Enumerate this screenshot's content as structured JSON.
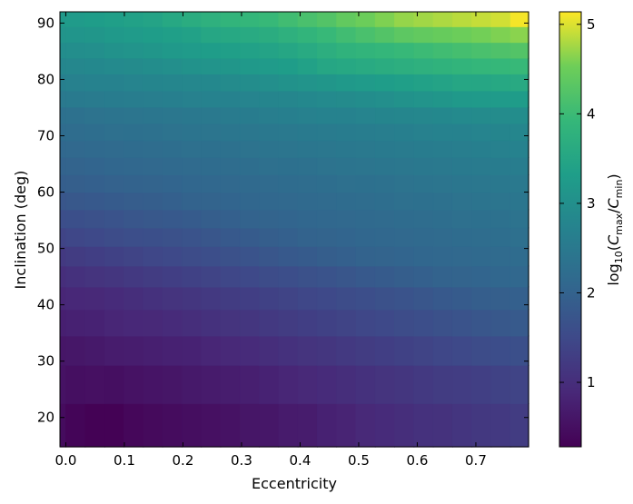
{
  "chart_data": {
    "type": "heatmap",
    "xlabel": "Eccentricity",
    "ylabel": "Inclination (deg)",
    "colorbar_label": {
      "prefix": "log",
      "sub10": "10",
      "open": "(",
      "c1": "C",
      "sub1": "max",
      "slash": "/",
      "c2": "C",
      "sub2": "min",
      "close": ")"
    },
    "colormap": "viridis",
    "xlim": [
      -0.01,
      0.79
    ],
    "ylim": [
      14.8,
      92
    ],
    "clim": [
      0.28,
      5.14
    ],
    "x_ticks": [
      {
        "value": 0.0,
        "label": "0.0"
      },
      {
        "value": 0.1,
        "label": "0.1"
      },
      {
        "value": 0.2,
        "label": "0.2"
      },
      {
        "value": 0.3,
        "label": "0.3"
      },
      {
        "value": 0.4,
        "label": "0.4"
      },
      {
        "value": 0.5,
        "label": "0.5"
      },
      {
        "value": 0.6,
        "label": "0.6"
      },
      {
        "value": 0.7,
        "label": "0.7"
      }
    ],
    "y_ticks": [
      {
        "value": 20,
        "label": "20"
      },
      {
        "value": 30,
        "label": "30"
      },
      {
        "value": 40,
        "label": "40"
      },
      {
        "value": 50,
        "label": "50"
      },
      {
        "value": 60,
        "label": "60"
      },
      {
        "value": 70,
        "label": "70"
      },
      {
        "value": 80,
        "label": "80"
      },
      {
        "value": 90,
        "label": "90"
      }
    ],
    "colorbar_ticks": [
      {
        "value": 1,
        "label": "1"
      },
      {
        "value": 2,
        "label": "2"
      },
      {
        "value": 3,
        "label": "3"
      },
      {
        "value": 4,
        "label": "4"
      },
      {
        "value": 5,
        "label": "5"
      }
    ],
    "x_edges": [
      -0.01,
      0.0,
      0.033,
      0.066,
      0.099,
      0.132,
      0.165,
      0.198,
      0.231,
      0.264,
      0.297,
      0.33,
      0.363,
      0.396,
      0.429,
      0.462,
      0.495,
      0.528,
      0.561,
      0.594,
      0.627,
      0.66,
      0.693,
      0.726,
      0.759,
      0.79
    ],
    "y_edges": [
      14.8,
      22.5,
      29.3,
      34.5,
      39.2,
      43.2,
      46.9,
      50.4,
      53.7,
      56.9,
      60.0,
      63.1,
      66.2,
      69.2,
      72.2,
      75.1,
      78.0,
      81.0,
      83.8,
      86.6,
      89.4,
      92.0
    ],
    "values": [
      [
        0.45,
        0.35,
        0.3,
        0.3,
        0.38,
        0.42,
        0.45,
        0.48,
        0.52,
        0.55,
        0.6,
        0.62,
        0.68,
        0.7,
        0.78,
        0.82,
        0.9,
        0.95,
        1.0,
        1.05,
        1.08,
        1.12,
        1.18,
        1.2,
        1.25
      ],
      [
        0.55,
        0.5,
        0.52,
        0.5,
        0.55,
        0.58,
        0.6,
        0.65,
        0.68,
        0.72,
        0.75,
        0.8,
        0.85,
        0.9,
        0.95,
        1.0,
        1.05,
        1.1,
        1.15,
        1.2,
        1.25,
        1.28,
        1.32,
        1.36,
        1.4
      ],
      [
        0.6,
        0.62,
        0.65,
        0.7,
        0.72,
        0.75,
        0.78,
        0.8,
        0.85,
        0.9,
        0.95,
        1.0,
        1.05,
        1.1,
        1.15,
        1.2,
        1.25,
        1.3,
        1.35,
        1.4,
        1.45,
        1.5,
        1.55,
        1.58,
        1.62
      ],
      [
        0.75,
        0.78,
        0.8,
        0.85,
        0.88,
        0.9,
        0.95,
        1.0,
        1.05,
        1.1,
        1.15,
        1.2,
        1.25,
        1.3,
        1.35,
        1.4,
        1.45,
        1.5,
        1.55,
        1.6,
        1.65,
        1.7,
        1.75,
        1.78,
        1.82
      ],
      [
        0.85,
        0.88,
        0.9,
        0.95,
        1.0,
        1.05,
        1.1,
        1.15,
        1.2,
        1.25,
        1.3,
        1.35,
        1.4,
        1.45,
        1.5,
        1.55,
        1.6,
        1.65,
        1.7,
        1.75,
        1.8,
        1.85,
        1.9,
        1.92,
        1.95
      ],
      [
        1.0,
        1.05,
        1.1,
        1.15,
        1.2,
        1.25,
        1.3,
        1.35,
        1.4,
        1.45,
        1.5,
        1.55,
        1.6,
        1.65,
        1.7,
        1.75,
        1.8,
        1.85,
        1.9,
        1.95,
        2.0,
        2.02,
        2.05,
        2.08,
        2.1
      ],
      [
        1.2,
        1.25,
        1.3,
        1.35,
        1.4,
        1.45,
        1.5,
        1.55,
        1.6,
        1.65,
        1.7,
        1.75,
        1.8,
        1.85,
        1.9,
        1.95,
        2.0,
        2.02,
        2.05,
        2.08,
        2.1,
        2.12,
        2.15,
        2.18,
        2.2
      ],
      [
        1.4,
        1.45,
        1.5,
        1.55,
        1.6,
        1.62,
        1.65,
        1.7,
        1.75,
        1.8,
        1.85,
        1.9,
        1.95,
        2.0,
        2.02,
        2.05,
        2.08,
        2.1,
        2.12,
        2.15,
        2.18,
        2.2,
        2.22,
        2.25,
        2.28
      ],
      [
        1.6,
        1.62,
        1.65,
        1.7,
        1.75,
        1.78,
        1.8,
        1.85,
        1.9,
        1.95,
        2.0,
        2.02,
        2.05,
        2.08,
        2.1,
        2.12,
        2.15,
        2.18,
        2.2,
        2.22,
        2.25,
        2.28,
        2.3,
        2.32,
        2.35
      ],
      [
        1.75,
        1.78,
        1.8,
        1.85,
        1.88,
        1.9,
        1.95,
        2.0,
        2.02,
        2.05,
        2.08,
        2.1,
        2.12,
        2.15,
        2.18,
        2.2,
        2.22,
        2.25,
        2.28,
        2.3,
        2.32,
        2.35,
        2.38,
        2.4,
        2.42
      ],
      [
        1.9,
        1.92,
        1.95,
        1.98,
        2.0,
        2.02,
        2.05,
        2.08,
        2.1,
        2.12,
        2.15,
        2.18,
        2.2,
        2.22,
        2.25,
        2.28,
        2.3,
        2.32,
        2.35,
        2.38,
        2.4,
        2.42,
        2.45,
        2.48,
        2.5
      ],
      [
        2.0,
        2.02,
        2.05,
        2.08,
        2.1,
        2.12,
        2.15,
        2.18,
        2.2,
        2.22,
        2.25,
        2.28,
        2.3,
        2.32,
        2.35,
        2.38,
        2.4,
        2.42,
        2.45,
        2.48,
        2.5,
        2.52,
        2.55,
        2.58,
        2.6
      ],
      [
        2.1,
        2.12,
        2.15,
        2.18,
        2.2,
        2.22,
        2.25,
        2.28,
        2.3,
        2.32,
        2.35,
        2.38,
        2.4,
        2.42,
        2.45,
        2.48,
        2.5,
        2.52,
        2.55,
        2.58,
        2.6,
        2.62,
        2.65,
        2.68,
        2.7
      ],
      [
        2.2,
        2.22,
        2.25,
        2.28,
        2.3,
        2.32,
        2.35,
        2.38,
        2.4,
        2.42,
        2.45,
        2.48,
        2.5,
        2.52,
        2.55,
        2.58,
        2.6,
        2.62,
        2.65,
        2.68,
        2.7,
        2.72,
        2.75,
        2.78,
        2.8
      ],
      [
        2.3,
        2.32,
        2.35,
        2.38,
        2.4,
        2.42,
        2.45,
        2.48,
        2.5,
        2.55,
        2.58,
        2.62,
        2.65,
        2.68,
        2.7,
        2.72,
        2.75,
        2.78,
        2.8,
        2.82,
        2.85,
        2.88,
        2.9,
        2.92,
        2.95
      ],
      [
        2.5,
        2.52,
        2.55,
        2.58,
        2.6,
        2.62,
        2.65,
        2.68,
        2.7,
        2.72,
        2.75,
        2.78,
        2.8,
        2.85,
        2.88,
        2.9,
        2.95,
        3.0,
        3.05,
        3.1,
        3.15,
        3.2,
        3.22,
        3.25,
        3.28
      ],
      [
        2.65,
        2.68,
        2.7,
        2.72,
        2.75,
        2.78,
        2.8,
        2.82,
        2.85,
        2.9,
        2.95,
        3.0,
        3.05,
        3.1,
        3.15,
        3.2,
        3.25,
        3.3,
        3.35,
        3.4,
        3.45,
        3.5,
        3.52,
        3.55,
        3.58
      ],
      [
        2.8,
        2.82,
        2.85,
        2.88,
        2.9,
        2.95,
        3.0,
        3.05,
        3.1,
        3.15,
        3.2,
        3.25,
        3.3,
        3.4,
        3.5,
        3.55,
        3.6,
        3.65,
        3.7,
        3.75,
        3.8,
        3.85,
        3.9,
        3.92,
        3.95
      ],
      [
        2.95,
        2.98,
        3.0,
        3.05,
        3.1,
        3.15,
        3.2,
        3.25,
        3.3,
        3.35,
        3.4,
        3.45,
        3.5,
        3.6,
        3.7,
        3.8,
        3.85,
        3.9,
        3.95,
        4.0,
        4.05,
        4.1,
        4.15,
        4.2,
        4.25
      ],
      [
        3.1,
        3.12,
        3.15,
        3.2,
        3.25,
        3.3,
        3.35,
        3.4,
        3.5,
        3.55,
        3.6,
        3.65,
        3.75,
        3.85,
        3.95,
        4.05,
        4.15,
        4.25,
        4.35,
        4.4,
        4.45,
        4.5,
        4.55,
        4.6,
        4.65
      ],
      [
        3.2,
        3.25,
        3.3,
        3.35,
        3.4,
        3.45,
        3.55,
        3.65,
        3.75,
        3.85,
        3.9,
        3.95,
        4.05,
        4.15,
        4.25,
        4.4,
        4.5,
        4.6,
        4.7,
        4.75,
        4.8,
        4.85,
        4.9,
        4.95,
        5.1
      ]
    ]
  }
}
